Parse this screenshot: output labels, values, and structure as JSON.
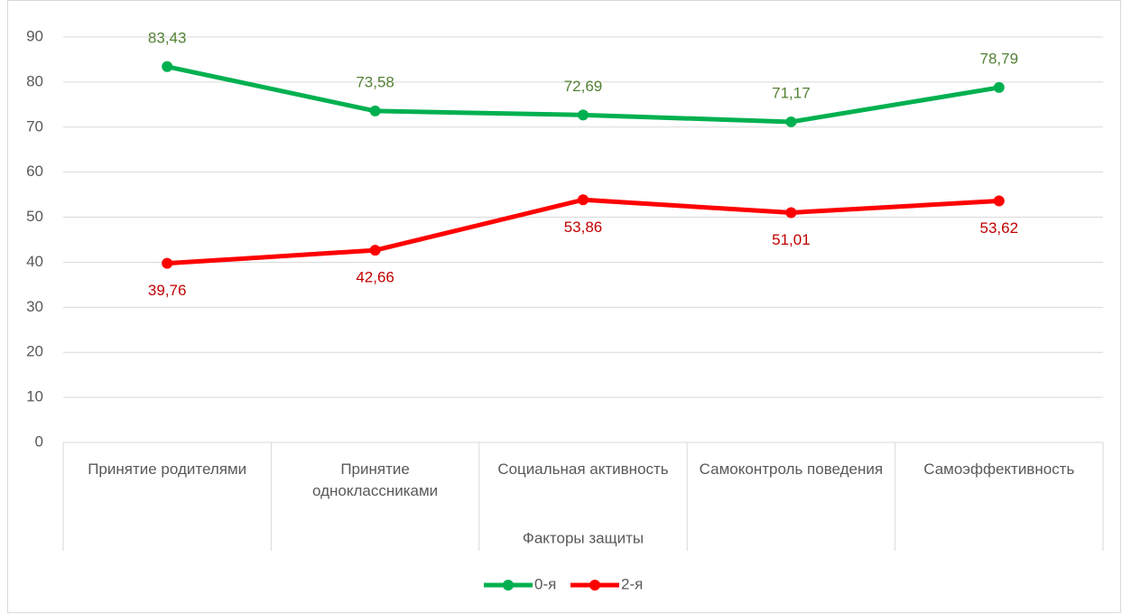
{
  "chart_data": {
    "type": "line",
    "x_label": "Факторы защиты",
    "categories": [
      "Принятие родителями",
      "Принятие одноклассниками",
      "Социальная активность",
      "Самоконтроль поведения",
      "Самоэффективность"
    ],
    "series": [
      {
        "name": "0-я",
        "color": "#00b050",
        "label_color": "#538135",
        "label_position": "above",
        "values": [
          83.43,
          73.58,
          72.69,
          71.17,
          78.79
        ],
        "value_labels": [
          "83,43",
          "73,58",
          "72,69",
          "71,17",
          "78,79"
        ]
      },
      {
        "name": "2-я",
        "color": "#ff0000",
        "label_color": "#c00000",
        "label_position": "below",
        "values": [
          39.76,
          42.66,
          53.86,
          51.01,
          53.62
        ],
        "value_labels": [
          "39,76",
          "42,66",
          "53,86",
          "51,01",
          "53,62"
        ]
      }
    ],
    "ylim": [
      0,
      90
    ],
    "yticks": [
      0,
      10,
      20,
      30,
      40,
      50,
      60,
      70,
      80,
      90
    ],
    "grid": true,
    "legend": "bottom"
  }
}
